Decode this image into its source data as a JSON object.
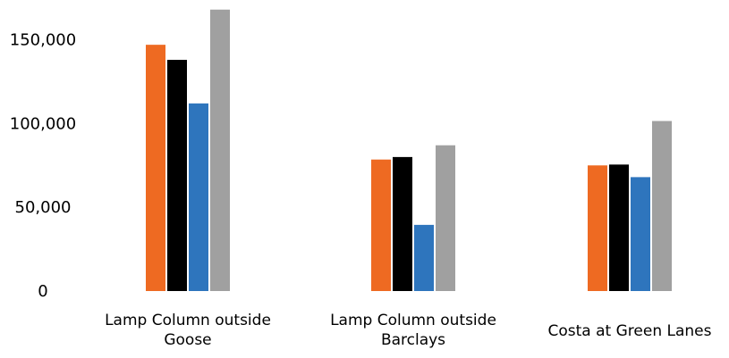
{
  "chart_data": {
    "type": "bar",
    "title": "",
    "xlabel": "",
    "ylabel": "",
    "ylim": [
      0,
      170000
    ],
    "yticks": [
      0,
      50000,
      100000,
      150000
    ],
    "ytick_labels": [
      "0",
      "50,000",
      "100,000",
      "150,000"
    ],
    "grid": false,
    "legend": "none",
    "categories": [
      [
        "Lamp Column outside",
        "Goose"
      ],
      [
        "Lamp Column outside",
        "Barclays"
      ],
      [
        "Costa at Green Lanes"
      ]
    ],
    "series": [
      {
        "color": "#EE6A22",
        "values": [
          147000,
          78500,
          75000
        ]
      },
      {
        "color": "#000000",
        "values": [
          138000,
          80000,
          75500
        ]
      },
      {
        "color": "#2E75BD",
        "values": [
          112000,
          39500,
          68000
        ]
      },
      {
        "color": "#A0A0A0",
        "values": [
          168000,
          87000,
          101500
        ]
      }
    ]
  }
}
